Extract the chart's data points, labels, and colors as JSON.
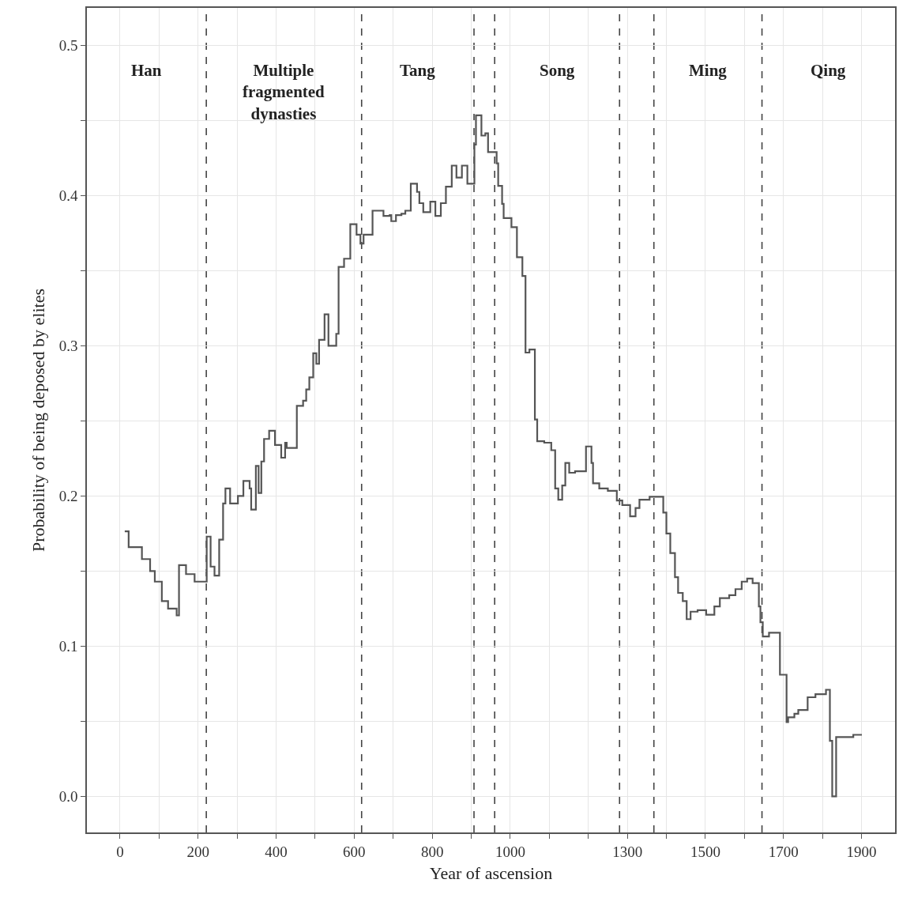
{
  "chart_data": {
    "type": "step",
    "xlabel": "Year of ascension",
    "ylabel": "Probability of being deposed by elites",
    "x": [
      12,
      22,
      56,
      77,
      89,
      107,
      123,
      145,
      151,
      169,
      191,
      222,
      232,
      242,
      254,
      264,
      270,
      282,
      302,
      316,
      332,
      336,
      348,
      355,
      362,
      369,
      382,
      397,
      413,
      423,
      427,
      453,
      469,
      477,
      485,
      495,
      503,
      510,
      524,
      534,
      554,
      560,
      574,
      590,
      606,
      616,
      624,
      647,
      675,
      691,
      695,
      707,
      721,
      731,
      745,
      761,
      767,
      777,
      795,
      808,
      822,
      835,
      850,
      862,
      876,
      890,
      908,
      912,
      926,
      936,
      943,
      965,
      969,
      979,
      983,
      1003,
      1017,
      1031,
      1039,
      1049,
      1063,
      1069,
      1087,
      1105,
      1115,
      1123,
      1133,
      1141,
      1151,
      1166,
      1194,
      1208,
      1212,
      1228,
      1250,
      1273,
      1287,
      1307,
      1321,
      1331,
      1357,
      1378,
      1392,
      1400,
      1410,
      1422,
      1430,
      1442,
      1452,
      1462,
      1480,
      1502,
      1523,
      1537,
      1561,
      1577,
      1593,
      1607,
      1621,
      1637,
      1641,
      1647,
      1663,
      1691,
      1698,
      1708,
      1712,
      1728,
      1738,
      1762,
      1782,
      1809,
      1819,
      1825,
      1835,
      1879,
      1901
    ],
    "values": [
      0.1765,
      0.166,
      0.158,
      0.15,
      0.143,
      0.13,
      0.125,
      0.1205,
      0.154,
      0.148,
      0.143,
      0.173,
      0.153,
      0.147,
      0.171,
      0.195,
      0.205,
      0.195,
      0.2,
      0.21,
      0.205,
      0.191,
      0.22,
      0.202,
      0.223,
      0.238,
      0.2435,
      0.234,
      0.2255,
      0.2355,
      0.232,
      0.26,
      0.2635,
      0.271,
      0.279,
      0.295,
      0.288,
      0.304,
      0.321,
      0.3,
      0.308,
      0.3525,
      0.358,
      0.381,
      0.374,
      0.368,
      0.374,
      0.39,
      0.3865,
      0.387,
      0.383,
      0.387,
      0.388,
      0.39,
      0.408,
      0.4025,
      0.395,
      0.389,
      0.396,
      0.3865,
      0.395,
      0.406,
      0.42,
      0.412,
      0.42,
      0.408,
      0.434,
      0.4535,
      0.44,
      0.4415,
      0.429,
      0.4215,
      0.4065,
      0.3945,
      0.385,
      0.379,
      0.359,
      0.3465,
      0.2955,
      0.2975,
      0.251,
      0.2365,
      0.2355,
      0.2305,
      0.205,
      0.1975,
      0.207,
      0.222,
      0.2155,
      0.2165,
      0.233,
      0.222,
      0.2085,
      0.205,
      0.2035,
      0.197,
      0.194,
      0.1865,
      0.192,
      0.1975,
      0.1995,
      0.1995,
      0.189,
      0.175,
      0.162,
      0.146,
      0.1355,
      0.13,
      0.118,
      0.123,
      0.124,
      0.121,
      0.1265,
      0.132,
      0.134,
      0.138,
      0.143,
      0.145,
      0.142,
      0.1265,
      0.116,
      0.1065,
      0.109,
      0.081,
      0.081,
      0.0495,
      0.0527,
      0.055,
      0.0575,
      0.066,
      0.068,
      0.071,
      0.037,
      0.0,
      0.0395,
      0.041,
      0.041
    ],
    "color": "#555555",
    "line_style": "solid",
    "marker": "none",
    "xlim": [
      -85,
      1986
    ],
    "ylim": [
      -0.024,
      0.525
    ],
    "xticks": [
      0,
      {
        "value": 100,
        "label": null
      },
      200,
      {
        "value": 300,
        "label": null
      },
      400,
      {
        "value": 500,
        "label": null
      },
      600,
      {
        "value": 700,
        "label": null
      },
      800,
      {
        "value": 900,
        "label": null
      },
      1000,
      {
        "value": 1100,
        "label": null
      },
      {
        "value": 1200,
        "label": null
      },
      1300,
      {
        "value": 1400,
        "label": null
      },
      1500,
      {
        "value": 1600,
        "label": null
      },
      1700,
      {
        "value": 1800,
        "label": null
      },
      1900
    ],
    "yticks": [
      {
        "value": 0,
        "label": "0.0"
      },
      {
        "value": 0.05,
        "label": null
      },
      0.1,
      {
        "value": 0.15,
        "label": null
      },
      0.2,
      {
        "value": 0.25,
        "label": null
      },
      0.3,
      {
        "value": 0.35,
        "label": null
      },
      0.4,
      {
        "value": 0.45,
        "label": null
      },
      0.5
    ],
    "grid": true,
    "ref_lines": [
      {
        "axis": "x",
        "value": 221,
        "line_style": "dashed",
        "color": "#444444"
      },
      {
        "axis": "x",
        "value": 619,
        "line_style": "dashed",
        "color": "#444444"
      },
      {
        "axis": "x",
        "value": 907,
        "line_style": "dashed",
        "color": "#444444"
      },
      {
        "axis": "x",
        "value": 960,
        "line_style": "dashed",
        "color": "#444444"
      },
      {
        "axis": "x",
        "value": 1280,
        "line_style": "dashed",
        "color": "#444444"
      },
      {
        "axis": "x",
        "value": 1368,
        "line_style": "dashed",
        "color": "#444444"
      },
      {
        "axis": "x",
        "value": 1645,
        "line_style": "dashed",
        "color": "#444444"
      }
    ],
    "annotations": [
      "Han",
      "Multiple\nfragmented\ndynasties",
      "Tang",
      "Song",
      "Ming",
      "Qing"
    ]
  }
}
